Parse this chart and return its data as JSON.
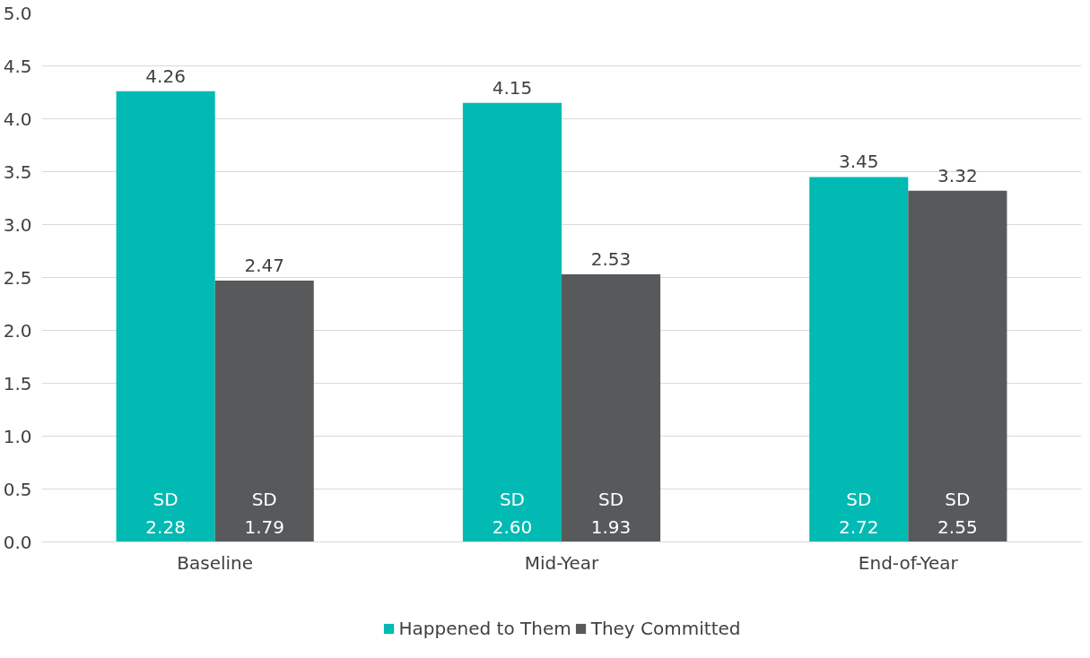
{
  "chart_data": {
    "type": "bar",
    "categories": [
      "Baseline",
      "Mid-Year",
      "End-of-Year"
    ],
    "series": [
      {
        "name": "Happened to Them",
        "color": "#00bab3",
        "values": [
          4.26,
          4.15,
          3.45
        ]
      },
      {
        "name": "They Committed",
        "color": "#58595b",
        "values": [
          2.47,
          2.53,
          3.32
        ]
      }
    ],
    "ylim": [
      0,
      5
    ],
    "yticks": [
      {
        "value": 0,
        "label": "0.0"
      },
      {
        "value": 0.5,
        "label": "0.5"
      },
      {
        "value": 1,
        "label": "1.0"
      },
      {
        "value": 1.5,
        "label": "1.5"
      },
      {
        "value": 2,
        "label": "2.0"
      },
      {
        "value": 2.5,
        "label": "2.5"
      },
      {
        "value": 3,
        "label": "3.0"
      },
      {
        "value": 3.5,
        "label": "3.5"
      },
      {
        "value": 4,
        "label": "4.0"
      },
      {
        "value": 4.5,
        "label": "4.5"
      },
      {
        "value": 5,
        "label": "5.0"
      }
    ],
    "grid": "y",
    "legend": "bottom",
    "data_labels": true,
    "annotations": [
      "SD\n2.28",
      "SD\n1.79",
      "SD\n2.60",
      "SD\n1.93",
      "SD\n2.72",
      "SD\n2.55"
    ]
  }
}
